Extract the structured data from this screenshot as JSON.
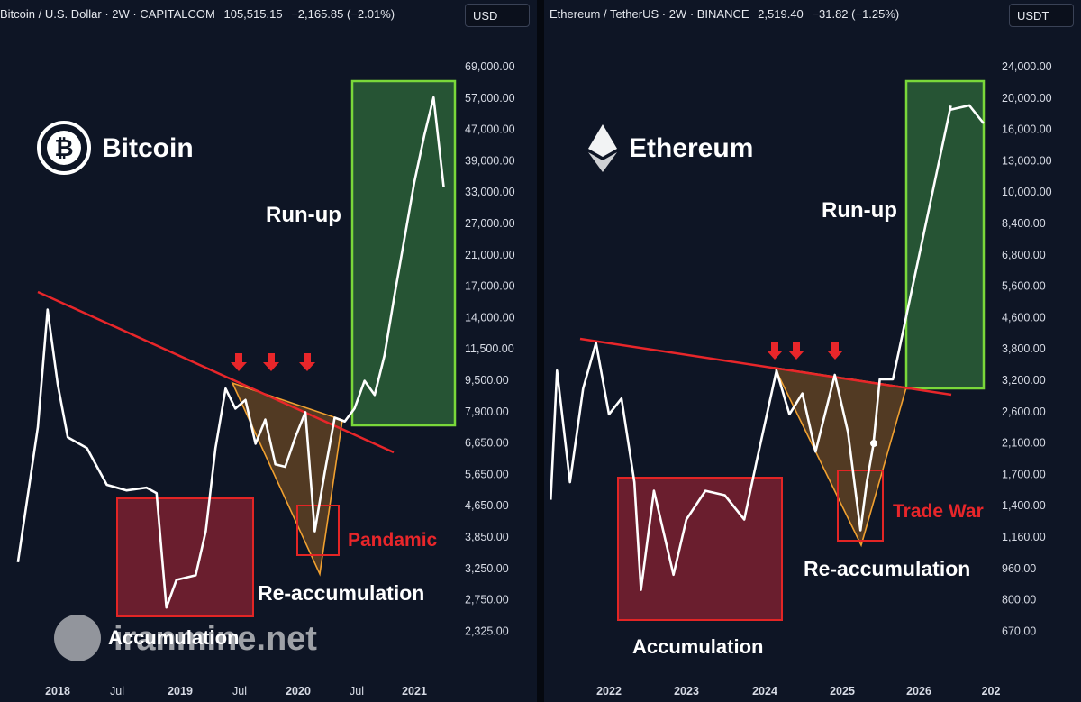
{
  "left": {
    "header": {
      "symbol": "Bitcoin / U.S. Dollar · 2W · CAPITALCOM",
      "price": "105,515.15",
      "change": "−2,165.85 (−2.01%)"
    },
    "currency": "USD",
    "logo_text": "Bitcoin",
    "y_ticks": [
      "69,000.00",
      "57,000.00",
      "47,000.00",
      "39,000.00",
      "33,000.00",
      "27,000.00",
      "21,000.00",
      "17,000.00",
      "14,000.00",
      "11,500.00",
      "9,500.00",
      "7,900.00",
      "6,650.00",
      "5,650.00",
      "4,650.00",
      "3,850.00",
      "3,250.00",
      "2,750.00",
      "2,325.00"
    ],
    "x_ticks": [
      "2018",
      "Jul",
      "2019",
      "Jul",
      "2020",
      "Jul",
      "2021"
    ],
    "labels": {
      "runup": "Run-up",
      "reaccum": "Re-accumulation",
      "pandemic": "Pandamic",
      "accum": "Accumulation",
      "watermark": "iranmine.net"
    }
  },
  "right": {
    "header": {
      "symbol": "Ethereum / TetherUS · 2W · BINANCE",
      "price": "2,519.40",
      "change": "−31.82 (−1.25%)"
    },
    "currency": "USDT",
    "logo_text": "Ethereum",
    "y_ticks": [
      "24,000.00",
      "20,000.00",
      "16,000.00",
      "13,000.00",
      "10,000.00",
      "8,400.00",
      "6,800.00",
      "5,600.00",
      "4,600.00",
      "3,800.00",
      "3,200.00",
      "2,600.00",
      "2,100.00",
      "1,700.00",
      "1,400.00",
      "1,160.00",
      "960.00",
      "800.00",
      "670.00"
    ],
    "x_ticks": [
      "2022",
      "2023",
      "2024",
      "2025",
      "2026",
      "202"
    ],
    "labels": {
      "runup": "Run-up",
      "reaccum": "Re-accumulation",
      "tradewar": "Trade War",
      "accum": "Accumulation"
    }
  },
  "chart_data": [
    {
      "type": "line",
      "title": "Bitcoin",
      "ylabel": "USD",
      "x": [
        "2017-09",
        "2017-11",
        "2017-12",
        "2018-01",
        "2018-02",
        "2018-04",
        "2018-06",
        "2018-08",
        "2018-10",
        "2018-11",
        "2018-12",
        "2019-01",
        "2019-03",
        "2019-04",
        "2019-05",
        "2019-06",
        "2019-07",
        "2019-08",
        "2019-09",
        "2019-10",
        "2019-11",
        "2019-12",
        "2020-01",
        "2020-02",
        "2020-03",
        "2020-04",
        "2020-05",
        "2020-06",
        "2020-07",
        "2020-08",
        "2020-09",
        "2020-10",
        "2020-11",
        "2020-12",
        "2021-01",
        "2021-02",
        "2021-03",
        "2021-04"
      ],
      "series": [
        {
          "name": "BTC",
          "values": [
            4200,
            9000,
            17500,
            11500,
            8500,
            8000,
            6500,
            6300,
            6400,
            6200,
            3250,
            3800,
            3900,
            5000,
            8000,
            11200,
            10000,
            10500,
            8200,
            9400,
            7300,
            7200,
            8500,
            9800,
            5000,
            7000,
            9500,
            9300,
            10000,
            11700,
            10800,
            13500,
            19000,
            26000,
            36000,
            47000,
            58000,
            35000
          ]
        }
      ],
      "ylim": [
        2200,
        80000
      ],
      "scale": "log",
      "annotations": [
        "Run-up",
        "Re-accumulation",
        "Pandamic",
        "Accumulation"
      ]
    },
    {
      "type": "line",
      "title": "Ethereum",
      "ylabel": "USDT",
      "x": [
        "2021-04",
        "2021-05",
        "2021-07",
        "2021-09",
        "2021-11",
        "2022-01",
        "2022-03",
        "2022-05",
        "2022-06",
        "2022-08",
        "2022-11",
        "2023-01",
        "2023-04",
        "2023-07",
        "2023-10",
        "2023-12",
        "2024-03",
        "2024-05",
        "2024-07",
        "2024-09",
        "2024-12",
        "2025-02",
        "2025-04",
        "2025-05",
        "2025-06",
        "2025-07",
        "2025-09",
        "2026-06"
      ],
      "series": [
        {
          "name": "ETH",
          "values": [
            1800,
            3900,
            2000,
            3500,
            4600,
            3000,
            3300,
            2000,
            1050,
            1900,
            1150,
            1600,
            1900,
            1850,
            1600,
            2300,
            3900,
            3000,
            3400,
            2400,
            3800,
            2700,
            1500,
            2000,
            2500,
            3700,
            3700,
            19000
          ]
        }
      ],
      "ylim": [
        600,
        32000
      ],
      "scale": "log",
      "annotations": [
        "Run-up",
        "Re-accumulation",
        "Trade War",
        "Accumulation"
      ]
    }
  ]
}
